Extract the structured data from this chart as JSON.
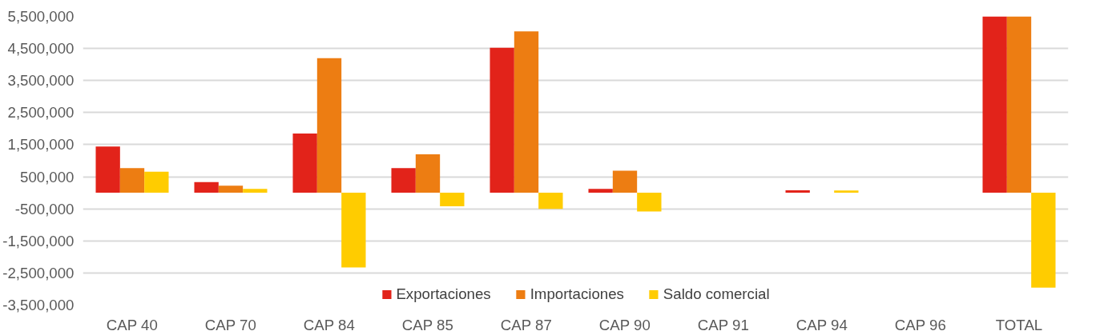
{
  "chart_data": {
    "type": "bar",
    "categories": [
      "CAP 40",
      "CAP 70",
      "CAP 84",
      "CAP 85",
      "CAP 87",
      "CAP 90",
      "CAP 91",
      "CAP 94",
      "CAP 96",
      "TOTAL"
    ],
    "series": [
      {
        "name": "Exportaciones",
        "color": "#e2231a",
        "values": [
          1440000,
          330000,
          1850000,
          770000,
          4520000,
          120000,
          0,
          80000,
          null,
          5500000
        ]
      },
      {
        "name": "Importaciones",
        "color": "#ed7d12",
        "values": [
          770000,
          220000,
          4200000,
          1200000,
          5030000,
          690000,
          0,
          null,
          null,
          5500000
        ]
      },
      {
        "name": "Saldo comercial",
        "color": "#ffcc00",
        "values": [
          660000,
          120000,
          -2330000,
          -420000,
          -500000,
          -580000,
          0,
          70000,
          0,
          -2960000
        ]
      }
    ],
    "ylim": [
      -3500000,
      5500000
    ],
    "yticks": [
      {
        "value": 5500000,
        "label": "5,500,000"
      },
      {
        "value": 4500000,
        "label": "4,500,000"
      },
      {
        "value": 3500000,
        "label": "3,500,000"
      },
      {
        "value": 2500000,
        "label": "2,500,000"
      },
      {
        "value": 1500000,
        "label": "1,500,000"
      },
      {
        "value": 500000,
        "label": "500,000"
      },
      {
        "value": -500000,
        "label": "-500,000"
      },
      {
        "value": -1500000,
        "label": "-1,500,000"
      },
      {
        "value": -2500000,
        "label": "-2,500,000"
      },
      {
        "value": -3500000,
        "label": "-3,500,000"
      }
    ],
    "grid": "y",
    "legend": "bottom"
  }
}
